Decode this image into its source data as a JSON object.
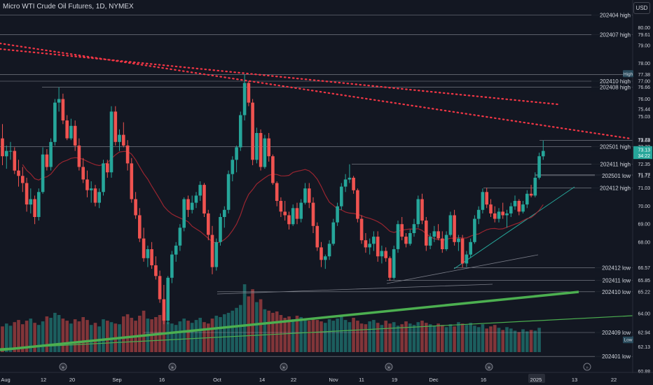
{
  "header": {
    "title": "Micro WTI Crude Oil Futures, 1D, NYMEX",
    "currency": "USD"
  },
  "colors": {
    "background": "#131722",
    "bull": "#26a69a",
    "bear": "#ef5350",
    "trend_red": "#f23645",
    "trend_green": "#4caf50",
    "ma": "#b22833",
    "level": "#b2b5be",
    "axis_text": "#d1d4dc"
  },
  "chart_data": {
    "type": "candlestick",
    "title": "Micro WTI Crude Oil Futures, 1D, NYMEX",
    "y_range": [
      60.6,
      81.4
    ],
    "y_scale": "linear",
    "grid": false,
    "price_ticks": [
      80.0,
      79.61,
      79.0,
      78.0,
      77.38,
      77.0,
      76.66,
      76.0,
      75.44,
      75.03,
      73.73,
      73.68,
      73.33,
      72.35,
      71.77,
      71.72,
      71.03,
      70.0,
      69.0,
      68.0,
      66.57,
      65.85,
      65.22,
      64.0,
      62.94,
      62.13,
      60.88
    ],
    "price_labels": [
      {
        "price": 77.38,
        "text": "High",
        "tag": "dark"
      },
      {
        "price": 73.13,
        "text": "73.13",
        "tag": "last"
      },
      {
        "price": 72.8,
        "text": "34:22",
        "tag": "last"
      },
      {
        "price": 62.5,
        "text": "Low",
        "tag": "dark"
      }
    ],
    "x_ticks": [
      "Aug",
      "12",
      "20",
      "Sep",
      "16",
      "Oct",
      "14",
      "22",
      "Nov",
      "11",
      "19",
      "Dec",
      "16",
      "2025",
      "13",
      "22"
    ],
    "levels": [
      {
        "price": 80.7,
        "label": "202404 high",
        "start_x": 0
      },
      {
        "price": 79.61,
        "label": "202407 high",
        "start_x": 0
      },
      {
        "price": 77.38,
        "label": "",
        "start_x": 0
      },
      {
        "price": 77.0,
        "label": "202410 high",
        "start_x": 0
      },
      {
        "price": 76.66,
        "label": "202408 high",
        "start_x": 60
      },
      {
        "price": 73.68,
        "label": "",
        "start_x": 770
      },
      {
        "price": 73.33,
        "label": "202501 high",
        "start_x": 0
      },
      {
        "price": 72.35,
        "label": "202411 high",
        "start_x": 502
      },
      {
        "price": 71.77,
        "label": "",
        "start_x": 764
      },
      {
        "price": 71.72,
        "label": "202501 low",
        "start_x": 764
      },
      {
        "price": 71.03,
        "label": "202412 high",
        "start_x": 690
      },
      {
        "price": 66.57,
        "label": "202412 low",
        "start_x": 648
      },
      {
        "price": 65.85,
        "label": "202411 low",
        "start_x": 552
      },
      {
        "price": 65.22,
        "label": "202410 low",
        "start_x": 310
      },
      {
        "price": 62.94,
        "label": "202409 low",
        "start_x": 205
      },
      {
        "price": 61.6,
        "label": "202401 low",
        "start_x": 0
      }
    ],
    "candles": [
      [
        73.8,
        74.6,
        72.3,
        72.8
      ],
      [
        72.8,
        73.4,
        72.1,
        73.1
      ],
      [
        73.1,
        73.6,
        72.6,
        73.1
      ],
      [
        73.1,
        73.3,
        71.8,
        72.0
      ],
      [
        72.0,
        72.6,
        71.1,
        71.7
      ],
      [
        71.7,
        72.2,
        70.8,
        71.3
      ],
      [
        71.3,
        71.6,
        69.7,
        70.1
      ],
      [
        70.1,
        71.0,
        69.6,
        70.4
      ],
      [
        70.4,
        70.6,
        69.0,
        69.4
      ],
      [
        69.4,
        71.0,
        69.2,
        70.8
      ],
      [
        70.8,
        73.3,
        70.7,
        72.9
      ],
      [
        72.9,
        73.2,
        72.0,
        72.2
      ],
      [
        72.2,
        73.8,
        72.0,
        73.6
      ],
      [
        73.6,
        76.0,
        73.4,
        75.8
      ],
      [
        75.8,
        76.66,
        75.3,
        76.0
      ],
      [
        76.0,
        76.3,
        74.6,
        74.8
      ],
      [
        74.8,
        75.1,
        73.7,
        73.8
      ],
      [
        73.8,
        74.9,
        73.7,
        74.5
      ],
      [
        74.5,
        74.8,
        73.1,
        73.4
      ],
      [
        73.4,
        73.8,
        72.0,
        72.2
      ],
      [
        72.2,
        72.7,
        71.3,
        71.5
      ],
      [
        71.5,
        72.0,
        70.5,
        70.9
      ],
      [
        70.9,
        71.4,
        70.2,
        71.0
      ],
      [
        71.0,
        71.2,
        70.0,
        70.2
      ],
      [
        70.2,
        71.0,
        69.9,
        70.8
      ],
      [
        70.8,
        72.6,
        70.6,
        72.4
      ],
      [
        72.4,
        72.6,
        71.6,
        71.9
      ],
      [
        71.9,
        75.6,
        71.6,
        75.3
      ],
      [
        75.3,
        75.6,
        73.4,
        73.6
      ],
      [
        73.6,
        74.3,
        73.1,
        74.0
      ],
      [
        74.0,
        74.7,
        73.3,
        73.4
      ],
      [
        73.4,
        73.7,
        72.0,
        72.4
      ],
      [
        72.4,
        72.7,
        70.2,
        70.4
      ],
      [
        70.4,
        70.8,
        69.3,
        69.5
      ],
      [
        69.5,
        69.9,
        68.0,
        68.2
      ],
      [
        68.2,
        68.8,
        66.9,
        67.1
      ],
      [
        67.1,
        67.8,
        66.6,
        67.6
      ],
      [
        67.6,
        68.0,
        66.5,
        66.7
      ],
      [
        66.7,
        67.2,
        65.9,
        66.1
      ],
      [
        66.1,
        66.4,
        64.6,
        64.8
      ],
      [
        64.8,
        65.6,
        63.4,
        63.6
      ],
      [
        63.6,
        66.1,
        63.4,
        66.0
      ],
      [
        66.0,
        67.5,
        65.7,
        67.3
      ],
      [
        67.3,
        68.0,
        66.9,
        67.8
      ],
      [
        67.8,
        69.0,
        67.5,
        68.8
      ],
      [
        68.8,
        70.5,
        68.6,
        70.4
      ],
      [
        70.4,
        70.6,
        69.4,
        69.8
      ],
      [
        69.8,
        70.6,
        69.6,
        70.2
      ],
      [
        70.2,
        70.8,
        69.9,
        70.6
      ],
      [
        70.6,
        71.4,
        70.3,
        71.2
      ],
      [
        71.2,
        71.3,
        69.4,
        69.6
      ],
      [
        69.6,
        69.8,
        68.1,
        68.4
      ],
      [
        68.4,
        68.9,
        66.2,
        66.6
      ],
      [
        66.6,
        68.2,
        66.4,
        68.0
      ],
      [
        68.0,
        69.6,
        67.8,
        69.4
      ],
      [
        69.4,
        70.0,
        68.8,
        69.8
      ],
      [
        69.8,
        72.0,
        69.6,
        71.8
      ],
      [
        71.8,
        72.8,
        71.4,
        72.6
      ],
      [
        72.6,
        73.4,
        71.9,
        73.3
      ],
      [
        73.3,
        75.3,
        73.1,
        75.1
      ],
      [
        75.1,
        77.38,
        74.8,
        76.9
      ],
      [
        76.9,
        77.0,
        75.6,
        75.8
      ],
      [
        75.8,
        76.0,
        72.3,
        72.6
      ],
      [
        72.6,
        74.4,
        72.4,
        74.1
      ],
      [
        74.1,
        74.3,
        72.0,
        72.2
      ],
      [
        72.2,
        74.0,
        72.1,
        73.8
      ],
      [
        73.8,
        74.1,
        72.5,
        72.8
      ],
      [
        72.8,
        72.9,
        71.2,
        71.3
      ],
      [
        71.3,
        71.4,
        70.0,
        70.3
      ],
      [
        70.3,
        70.5,
        69.4,
        69.7
      ],
      [
        69.7,
        70.3,
        69.2,
        69.5
      ],
      [
        69.5,
        69.7,
        68.7,
        69.0
      ],
      [
        69.0,
        70.1,
        68.9,
        69.9
      ],
      [
        69.9,
        70.2,
        69.0,
        69.3
      ],
      [
        69.3,
        70.4,
        69.1,
        70.2
      ],
      [
        70.2,
        71.3,
        70.1,
        71.0
      ],
      [
        71.0,
        71.3,
        69.9,
        70.2
      ],
      [
        70.2,
        70.5,
        68.5,
        68.9
      ],
      [
        68.9,
        69.1,
        67.5,
        67.7
      ],
      [
        67.7,
        68.0,
        66.6,
        67.0
      ],
      [
        67.0,
        67.3,
        66.5,
        67.2
      ],
      [
        67.2,
        68.1,
        67.0,
        67.9
      ],
      [
        67.9,
        69.3,
        67.8,
        69.1
      ],
      [
        69.1,
        70.2,
        68.9,
        70.0
      ],
      [
        70.0,
        71.3,
        69.8,
        71.1
      ],
      [
        71.1,
        71.8,
        70.8,
        71.5
      ],
      [
        71.5,
        72.35,
        71.3,
        71.6
      ],
      [
        71.6,
        71.7,
        70.7,
        70.9
      ],
      [
        70.9,
        71.0,
        69.1,
        69.3
      ],
      [
        69.3,
        69.5,
        67.9,
        68.1
      ],
      [
        68.1,
        68.5,
        67.4,
        67.7
      ],
      [
        67.7,
        68.2,
        67.3,
        67.9
      ],
      [
        67.9,
        68.6,
        67.5,
        68.3
      ],
      [
        68.3,
        68.6,
        66.9,
        67.2
      ],
      [
        67.2,
        67.8,
        66.8,
        67.5
      ],
      [
        67.5,
        67.7,
        66.9,
        67.1
      ],
      [
        67.1,
        67.2,
        65.85,
        66.0
      ],
      [
        66.0,
        67.8,
        65.9,
        67.6
      ],
      [
        67.6,
        69.2,
        67.4,
        69.0
      ],
      [
        69.0,
        69.4,
        68.1,
        68.3
      ],
      [
        68.3,
        68.5,
        67.7,
        67.9
      ],
      [
        67.9,
        68.7,
        67.8,
        68.5
      ],
      [
        68.5,
        69.3,
        68.3,
        69.0
      ],
      [
        69.0,
        70.6,
        68.8,
        70.4
      ],
      [
        70.4,
        70.7,
        69.0,
        69.2
      ],
      [
        69.2,
        69.4,
        67.5,
        67.8
      ],
      [
        67.8,
        68.5,
        67.6,
        68.3
      ],
      [
        68.3,
        68.9,
        68.0,
        68.6
      ],
      [
        68.6,
        69.0,
        68.1,
        68.2
      ],
      [
        68.2,
        68.6,
        67.4,
        67.6
      ],
      [
        67.6,
        68.6,
        67.5,
        68.4
      ],
      [
        68.4,
        69.7,
        68.3,
        69.5
      ],
      [
        69.5,
        69.8,
        67.8,
        68.0
      ],
      [
        68.0,
        68.4,
        67.5,
        68.2
      ],
      [
        68.2,
        68.4,
        66.57,
        66.8
      ],
      [
        66.8,
        67.5,
        66.6,
        67.3
      ],
      [
        67.3,
        68.2,
        67.1,
        68.0
      ],
      [
        68.0,
        69.5,
        67.9,
        69.3
      ],
      [
        69.3,
        70.0,
        69.0,
        69.8
      ],
      [
        69.8,
        71.0,
        69.6,
        70.8
      ],
      [
        70.8,
        71.03,
        69.9,
        70.1
      ],
      [
        70.1,
        70.4,
        69.4,
        69.6
      ],
      [
        69.6,
        70.0,
        69.1,
        69.3
      ],
      [
        69.3,
        69.9,
        69.1,
        69.7
      ],
      [
        69.7,
        70.2,
        69.3,
        69.5
      ],
      [
        69.5,
        69.8,
        68.8,
        69.6
      ],
      [
        69.6,
        70.2,
        69.4,
        70.0
      ],
      [
        70.0,
        70.6,
        69.8,
        70.3
      ],
      [
        70.3,
        70.4,
        69.5,
        69.7
      ],
      [
        69.7,
        70.3,
        69.6,
        70.1
      ],
      [
        70.1,
        70.9,
        69.9,
        70.7
      ],
      [
        70.7,
        71.2,
        70.5,
        70.6
      ],
      [
        70.6,
        71.9,
        70.5,
        71.6
      ],
      [
        71.6,
        73.0,
        71.5,
        72.8
      ],
      [
        72.8,
        73.68,
        72.6,
        73.1
      ]
    ],
    "volume": [
      0.36,
      0.4,
      0.37,
      0.42,
      0.45,
      0.39,
      0.44,
      0.47,
      0.41,
      0.38,
      0.43,
      0.5,
      0.48,
      0.55,
      0.52,
      0.47,
      0.44,
      0.4,
      0.46,
      0.43,
      0.49,
      0.45,
      0.38,
      0.41,
      0.36,
      0.46,
      0.44,
      0.42,
      0.4,
      0.39,
      0.5,
      0.53,
      0.48,
      0.44,
      0.51,
      0.58,
      0.47,
      0.46,
      0.49,
      0.52,
      0.56,
      0.42,
      0.4,
      0.38,
      0.43,
      0.47,
      0.44,
      0.41,
      0.45,
      0.48,
      0.42,
      0.4,
      0.47,
      0.51,
      0.49,
      0.53,
      0.55,
      0.58,
      0.62,
      0.66,
      0.95,
      0.78,
      0.88,
      0.7,
      0.74,
      0.6,
      0.58,
      0.55,
      0.57,
      0.52,
      0.48,
      0.5,
      0.46,
      0.51,
      0.49,
      0.47,
      0.44,
      0.48,
      0.45,
      0.43,
      0.41,
      0.46,
      0.44,
      0.47,
      0.5,
      0.45,
      0.42,
      0.48,
      0.44,
      0.4,
      0.39,
      0.43,
      0.45,
      0.41,
      0.38,
      0.44,
      0.4,
      0.42,
      0.37,
      0.39,
      0.43,
      0.4,
      0.38,
      0.42,
      0.44,
      0.41,
      0.39,
      0.37,
      0.4,
      0.38,
      0.35,
      0.39,
      0.36,
      0.42,
      0.4,
      0.38,
      0.41,
      0.37,
      0.35,
      0.39,
      0.33,
      0.36,
      0.38,
      0.34,
      0.31,
      0.35,
      0.33,
      0.3,
      0.28,
      0.32,
      0.29,
      0.31,
      0.3,
      0.34
    ]
  }
}
